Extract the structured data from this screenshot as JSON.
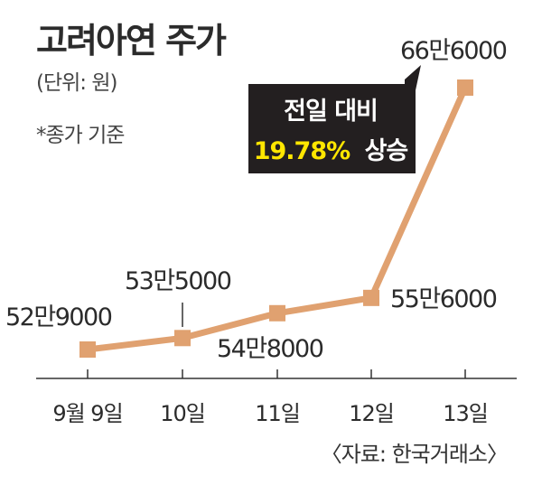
{
  "title": "고려아연 주가",
  "unit_note": "(단위: 원)",
  "basis_note": "*종가 기준",
  "source": "〈자료: 한국거래소〉",
  "callout": {
    "line1": "전일 대비",
    "line2_value": "19.78%",
    "line2_suffix": "상승"
  },
  "colors": {
    "line": "#e0a170",
    "marker": "#e0a170",
    "callout_bg": "#231f20",
    "callout_text": "#ffffff",
    "callout_highlight": "#ffe600",
    "axis": "#333333"
  },
  "chart_data": {
    "type": "line",
    "categories": [
      "9월 9일",
      "10일",
      "11일",
      "12일",
      "13일"
    ],
    "values": [
      529000,
      535000,
      548000,
      556000,
      666000
    ],
    "data_labels": [
      "52만9000",
      "53만5000",
      "54만8000",
      "55만6000",
      "66만6000"
    ],
    "grid": false,
    "legend": "none"
  }
}
